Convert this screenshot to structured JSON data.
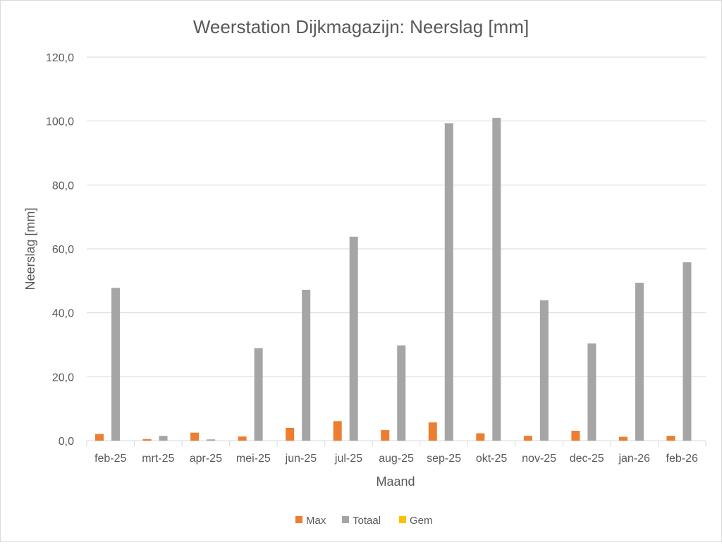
{
  "chart_data": {
    "type": "bar",
    "title": "Weerstation Dijkmagazijn: Neerslag  [mm]",
    "xlabel": "Maand",
    "ylabel": "Neerslag  [mm]",
    "ylim": [
      0,
      120
    ],
    "yticks": [
      0,
      20,
      40,
      60,
      80,
      100,
      120
    ],
    "ytick_labels": [
      "0,0",
      "20,0",
      "40,0",
      "60,0",
      "80,0",
      "100,0",
      "120,0"
    ],
    "grid": true,
    "legend_position": "bottom",
    "categories": [
      "feb-25",
      "mrt-25",
      "apr-25",
      "mei-25",
      "jun-25",
      "jul-25",
      "aug-25",
      "sep-25",
      "okt-25",
      "nov-25",
      "dec-25",
      "jan-26",
      "feb-26"
    ],
    "series": [
      {
        "name": "Max",
        "color": "#ed7d31",
        "values": [
          2.1,
          0.5,
          2.5,
          1.3,
          4.0,
          6.1,
          3.3,
          5.7,
          2.3,
          1.5,
          3.1,
          1.2,
          1.5
        ]
      },
      {
        "name": "Totaal",
        "color": "#a5a5a5",
        "values": [
          47.8,
          1.5,
          0.4,
          28.9,
          47.2,
          63.8,
          29.8,
          99.3,
          101.0,
          43.9,
          30.4,
          49.4,
          55.8
        ]
      },
      {
        "name": "Gem",
        "color": "#ffc000",
        "values": [
          0,
          0,
          0,
          0,
          0,
          0,
          0,
          0,
          0,
          0,
          0,
          0,
          0
        ]
      }
    ]
  }
}
